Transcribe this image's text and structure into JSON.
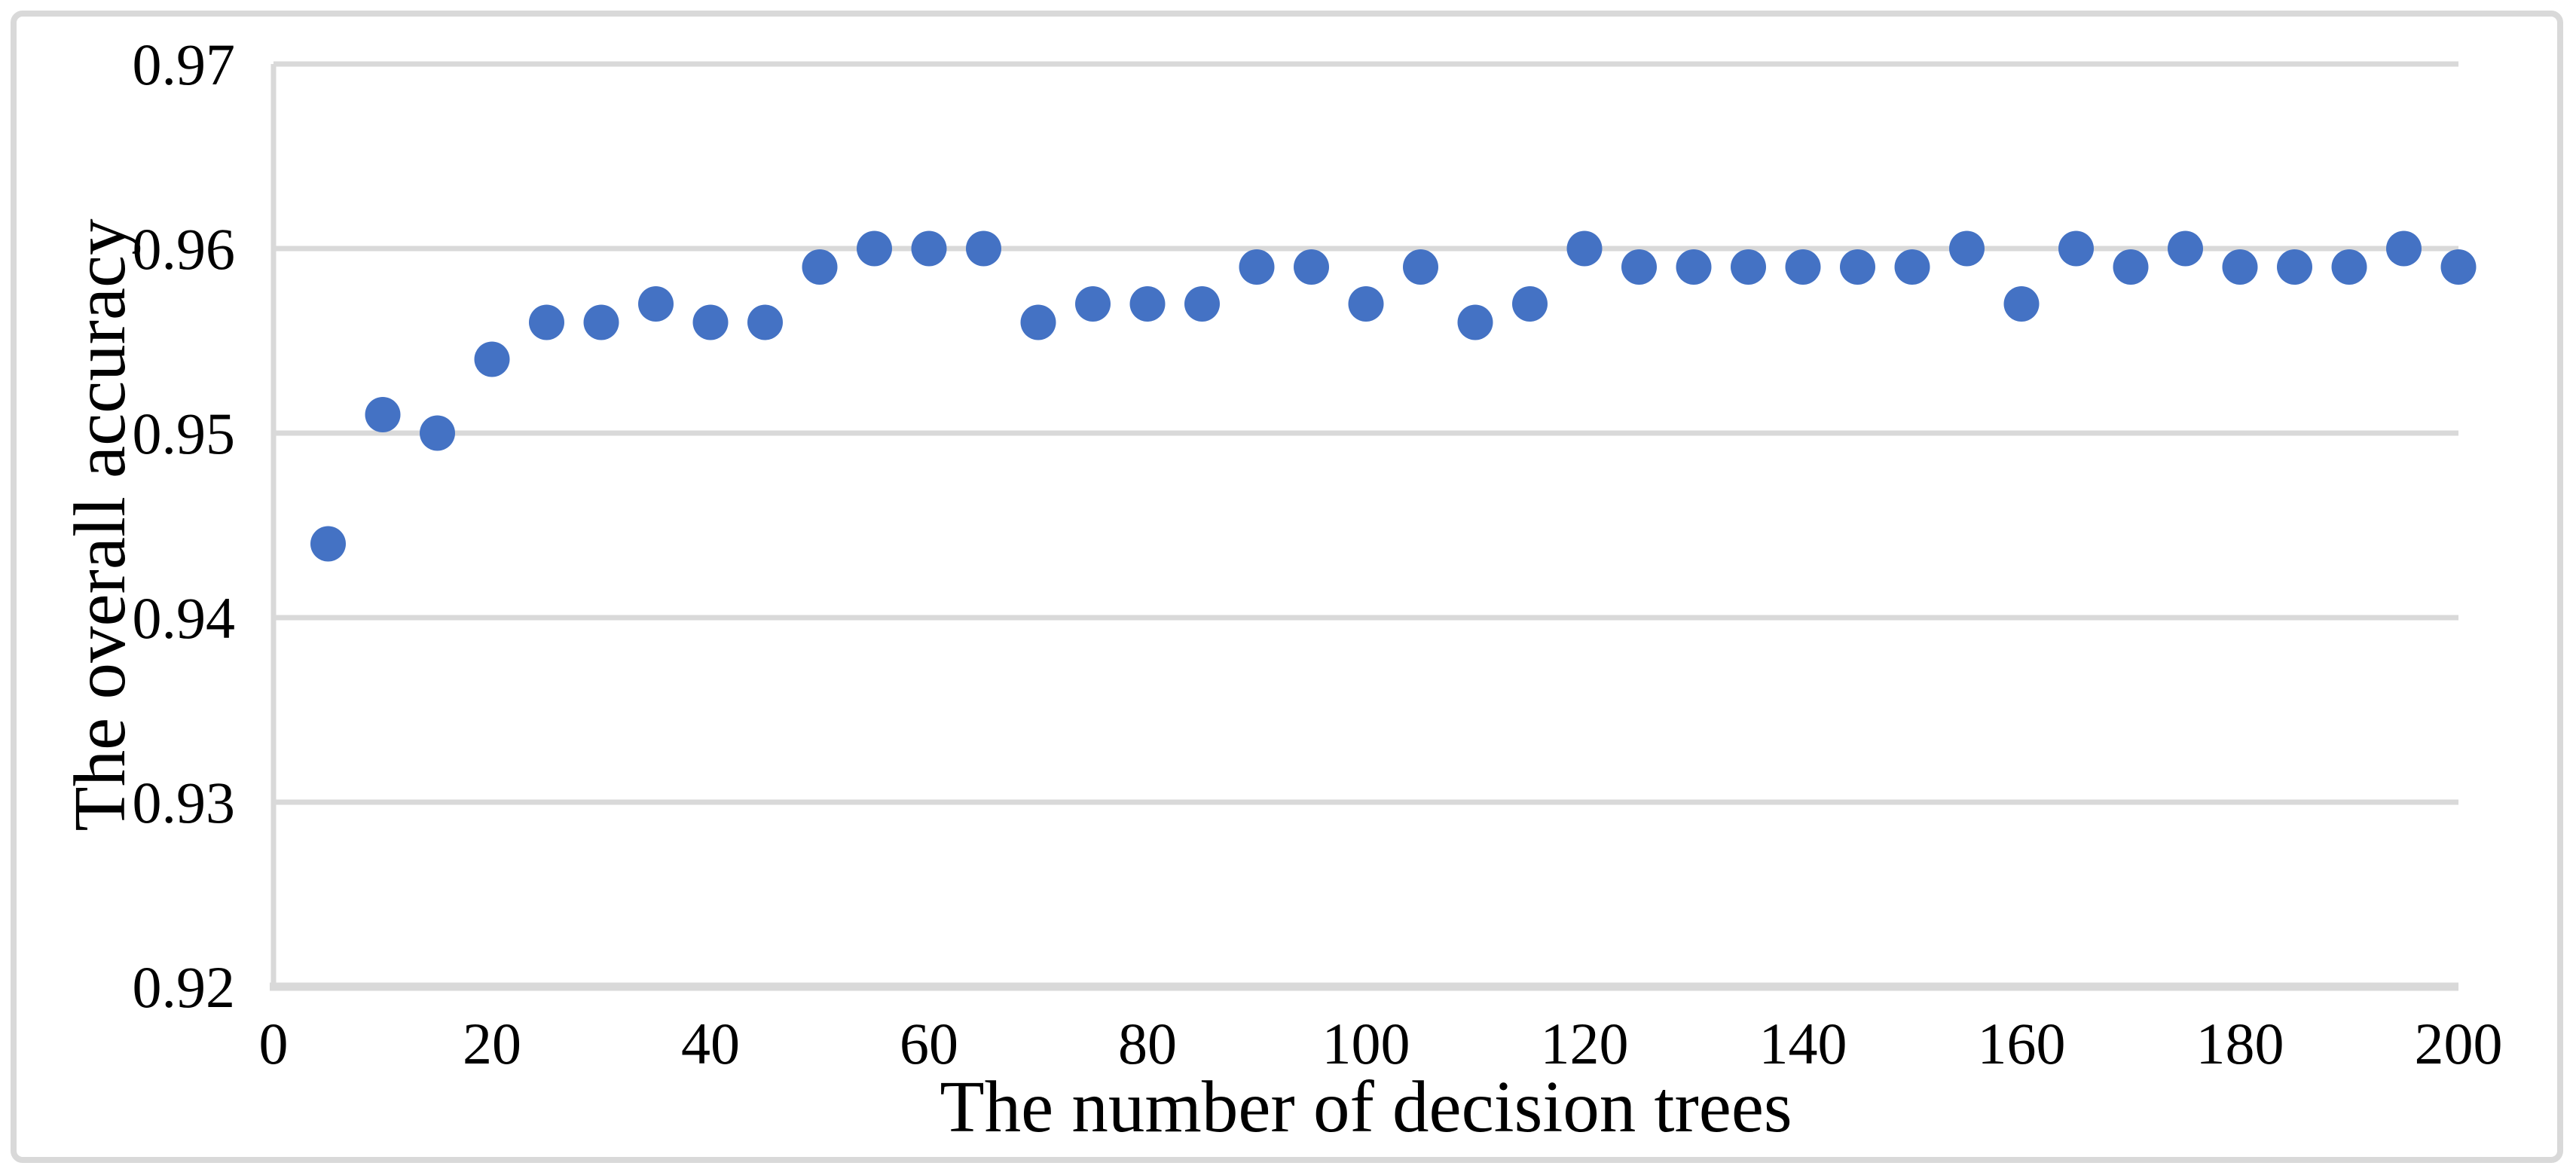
{
  "figure": {
    "background_color": "#ffffff",
    "border_color": "#d9d9d9",
    "text_color": "#000000"
  },
  "chart_data": {
    "type": "scatter",
    "title": "",
    "xlabel": "The number of decision trees",
    "ylabel": "The overall accuracy",
    "x": [
      5,
      10,
      15,
      20,
      25,
      30,
      35,
      40,
      45,
      50,
      55,
      60,
      65,
      70,
      75,
      80,
      85,
      90,
      95,
      100,
      105,
      110,
      115,
      120,
      125,
      130,
      135,
      140,
      145,
      150,
      155,
      160,
      165,
      170,
      175,
      180,
      185,
      190,
      195,
      200
    ],
    "y": [
      0.944,
      0.951,
      0.95,
      0.954,
      0.956,
      0.956,
      0.957,
      0.956,
      0.956,
      0.959,
      0.96,
      0.96,
      0.96,
      0.956,
      0.957,
      0.957,
      0.957,
      0.959,
      0.959,
      0.957,
      0.959,
      0.956,
      0.957,
      0.96,
      0.959,
      0.959,
      0.959,
      0.959,
      0.959,
      0.959,
      0.96,
      0.957,
      0.96,
      0.959,
      0.96,
      0.959,
      0.959,
      0.959,
      0.96,
      0.959
    ],
    "xlim": [
      0,
      200
    ],
    "ylim": [
      0.92,
      0.97
    ],
    "xticks": [
      0,
      20,
      40,
      60,
      80,
      100,
      120,
      140,
      160,
      180,
      200
    ],
    "xtick_labels": [
      "0",
      "20",
      "40",
      "60",
      "80",
      "100",
      "120",
      "140",
      "160",
      "180",
      "200"
    ],
    "yticks": [
      0.92,
      0.93,
      0.94,
      0.95,
      0.96,
      0.97
    ],
    "ytick_labels": [
      "0.92",
      "0.93",
      "0.94",
      "0.95",
      "0.96",
      "0.97"
    ],
    "grid": "horizontal",
    "legend": "none",
    "point_color": "#4472C4",
    "gridline_color": "#d9d9d9",
    "axis_line_color": "#d9d9d9"
  }
}
